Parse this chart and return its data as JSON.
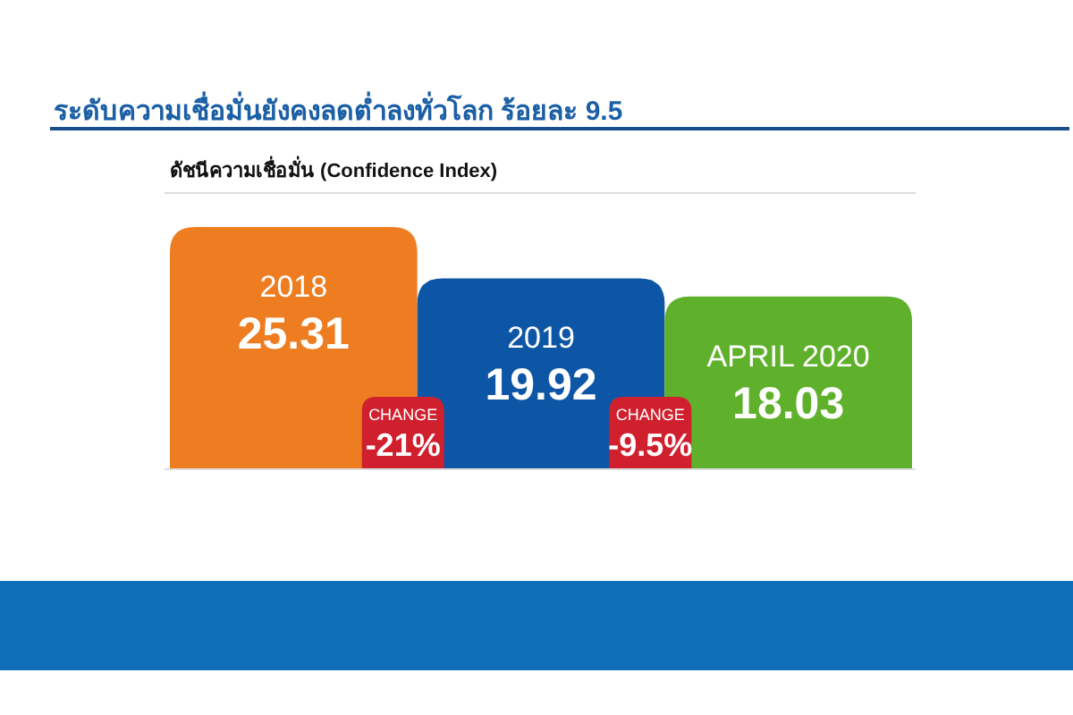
{
  "chart_data": {
    "type": "bar",
    "title": "ระดับความเชื่อมั่นยังคงลดต่ำลงทั่วโลก  ร้อยละ 9.5",
    "subtitle": "ดัชนีความเชื่อมั่น (Confidence Index)",
    "categories": [
      "2018",
      "2019",
      "APRIL 2020"
    ],
    "values": [
      25.31,
      19.92,
      18.03
    ],
    "colors": [
      "#ee7d22",
      "#0d56a6",
      "#5fb12b"
    ],
    "data_labels": true,
    "annotations": [
      "CHANGE\n-21%",
      "CHANGE\n-9.5%"
    ]
  }
}
